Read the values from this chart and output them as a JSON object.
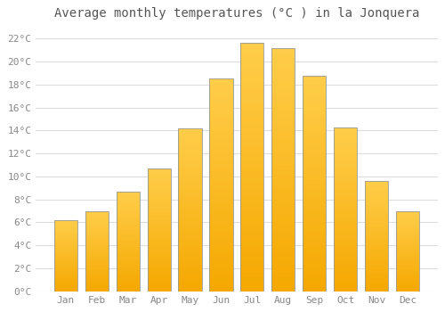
{
  "title": "Average monthly temperatures (°C ) in la Jonquera",
  "months": [
    "Jan",
    "Feb",
    "Mar",
    "Apr",
    "May",
    "Jun",
    "Jul",
    "Aug",
    "Sep",
    "Oct",
    "Nov",
    "Dec"
  ],
  "values": [
    6.2,
    7.0,
    8.7,
    10.7,
    14.2,
    18.5,
    21.6,
    21.2,
    18.8,
    14.3,
    9.6,
    7.0
  ],
  "bar_color_bottom": "#F5A800",
  "bar_color_top": "#FFCD4A",
  "bar_edge_color": "#999999",
  "ylim": [
    0,
    23
  ],
  "yticks": [
    0,
    2,
    4,
    6,
    8,
    10,
    12,
    14,
    16,
    18,
    20,
    22
  ],
  "background_color": "#FFFFFF",
  "grid_color": "#DDDDDD",
  "title_fontsize": 10,
  "tick_fontsize": 8,
  "font_family": "monospace"
}
